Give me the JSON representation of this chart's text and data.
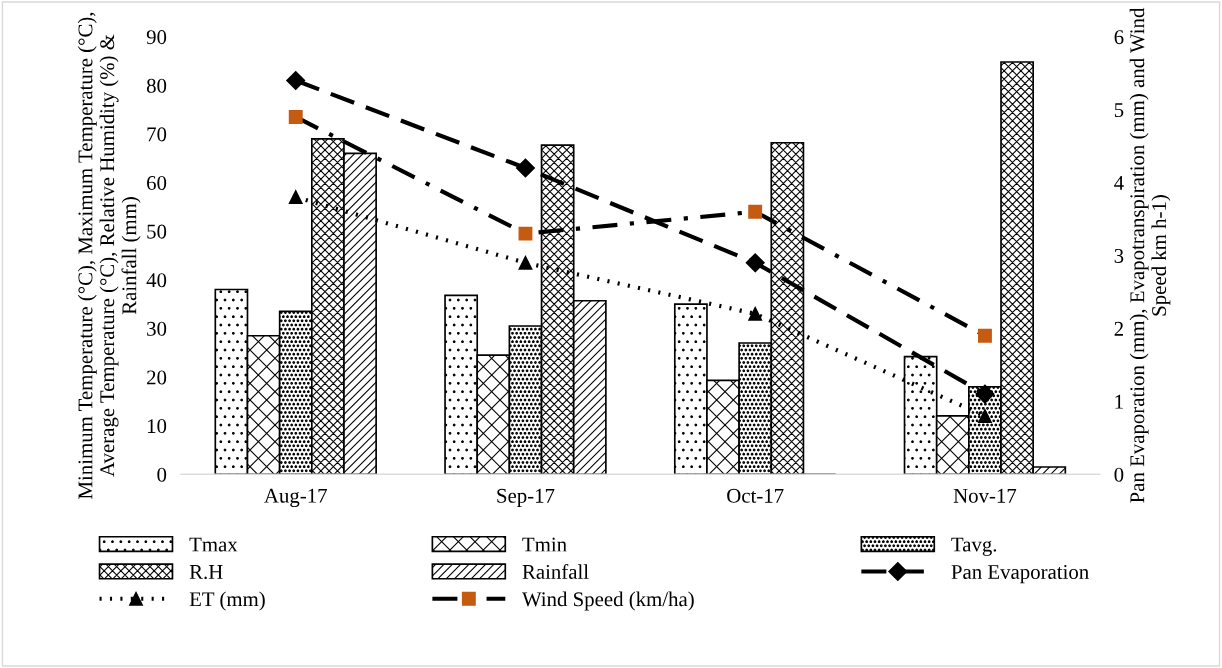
{
  "chart_data": {
    "type": "bar",
    "ylabel": "Minimum Temperature (°C), Maximum Temperature (°C), Average Temperature (°C), Relative Humidity (%) & Rainfall (mm)",
    "y2label": "Pan Evaporation (mm), Evapotranspiration (mm) and Wind Speed km h-1)",
    "categories": [
      "Aug-17",
      "Sep-17",
      "Oct-17",
      "Nov-17"
    ],
    "ylim": [
      0,
      90
    ],
    "yticks": [
      0,
      10,
      20,
      30,
      40,
      50,
      60,
      70,
      80,
      90
    ],
    "y2lim": [
      0,
      6
    ],
    "y2ticks": [
      0,
      1,
      2,
      3,
      4,
      5,
      6
    ],
    "grid": false,
    "legend": "bottom",
    "series": [
      {
        "name": "Tmax",
        "color": "#000000",
        "values": [
          38,
          36.8,
          35,
          24.2
        ]
      },
      {
        "name": "Tmin",
        "color": "#000000",
        "values": [
          28.5,
          24.5,
          19.3,
          12
        ]
      },
      {
        "name": "Tavg.",
        "color": "#000000",
        "values": [
          33.5,
          30.5,
          27,
          18
        ]
      },
      {
        "name": "R.H",
        "color": "#000000",
        "values": [
          69,
          67.7,
          68.2,
          84.8
        ]
      },
      {
        "name": "Rainfall",
        "color": "#000000",
        "values": [
          66,
          35.7,
          0,
          1.5
        ]
      },
      {
        "name": "Pan Evaporation",
        "type": "line",
        "axis": "y2",
        "color": "#000000",
        "marker": "diamond",
        "line_style": "dashed",
        "values": [
          5.4,
          4.2,
          2.9,
          1.1
        ]
      },
      {
        "name": "ET (mm)",
        "type": "line",
        "axis": "y2",
        "color": "#000000",
        "marker": "triangle",
        "line_style": "dotted",
        "values": [
          3.8,
          2.9,
          2.2,
          0.8
        ]
      },
      {
        "name": "Wind Speed (km/ha)",
        "type": "line",
        "axis": "y2",
        "color": "#c55a11",
        "marker": "square",
        "line_style": "dashdot",
        "values": [
          4.9,
          3.3,
          3.6,
          1.9
        ]
      }
    ]
  }
}
